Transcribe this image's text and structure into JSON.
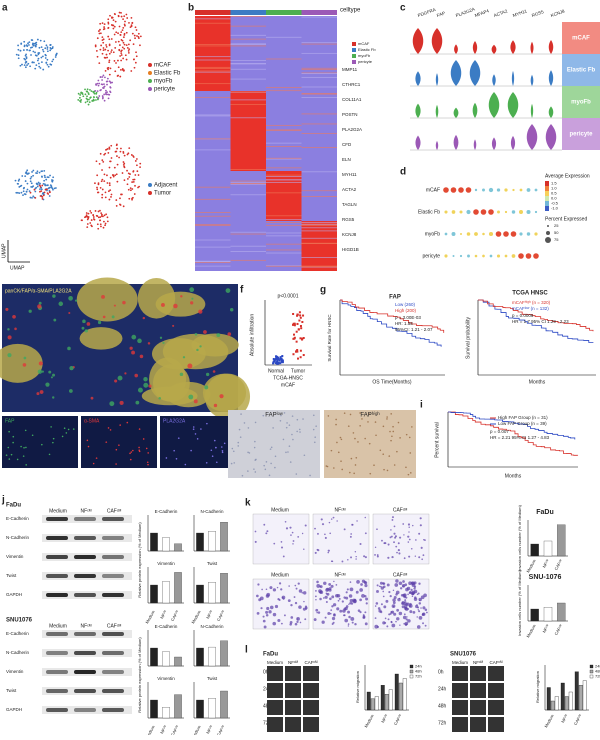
{
  "panel_labels": [
    "a",
    "b",
    "c",
    "d",
    "e",
    "f",
    "g",
    "h",
    "i",
    "j",
    "k",
    "l"
  ],
  "a": {
    "legend_top": [
      "mCAF",
      "Elastic Fb",
      "myoFb",
      "pericyte"
    ],
    "legend_bottom": [
      "Adjacent",
      "Tumor"
    ],
    "x_axis": "UMAP",
    "y_axis": "UMAP"
  },
  "b": {
    "legend_title": "celltype",
    "legend_items": [
      "mCAF",
      "Elastic Fb",
      "myoFb",
      "pericyte"
    ],
    "genes": [
      "MMP11",
      "CTHRC1",
      "COL11A1",
      "POSTN",
      "PLA2G2A",
      "CFD",
      "ELN",
      "MYH11",
      "ACTA2",
      "TAGLN",
      "RGS5",
      "KCNJ8",
      "HIGD1B"
    ]
  },
  "c": {
    "genes": [
      "PDGFRA",
      "FAP",
      "PLA2G2A",
      "MFAP4",
      "ACTA2",
      "MYH11",
      "RGS5",
      "KCNJ8"
    ],
    "rows": [
      "mCAF",
      "Elastic Fb",
      "myoFb",
      "pericyte"
    ]
  },
  "d": {
    "rows": [
      "mCAF",
      "Elastic Fb",
      "myoFb",
      "pericyte"
    ],
    "color_title": "Average Expression",
    "color_ticks": [
      "1.5",
      "1.0",
      "0.5",
      "0.0",
      "-0.5",
      "-1.0"
    ],
    "size_title": "Percent Expressed",
    "size_items": [
      "25",
      "50",
      "75"
    ]
  },
  "e": {
    "title": "panCK/FAP/α-SMA/PLA2G2A",
    "insets": [
      "FAP",
      "α-SMA",
      "PLA2G2A"
    ]
  },
  "f": {
    "p": "p<0.0001",
    "y_axis": "Absolute infiltration",
    "groups": [
      "Normal",
      "Tumor"
    ],
    "caption": [
      "TCGA-HNSC",
      "mCAF"
    ]
  },
  "g": {
    "left": {
      "title": "FAP",
      "legend": [
        "Low (260)",
        "High (200)"
      ],
      "stats": [
        "p = 3.00E-03",
        "HR: 1.58",
        "95%CI: 1.21 - 2.07"
      ],
      "x_axis": "OS Time(Months)",
      "y_axis": "Survival Rate for HNSC"
    },
    "right": {
      "title": "TCGA HNSC",
      "legend": [
        "mCAFʰⁱᵍʰ (n = 320)",
        "mCAFˡᵒʷ (n = 132)"
      ],
      "stats": [
        "p = 0.0006",
        "HR = 1.7 95% CI 1.29 - 2.23"
      ],
      "x_axis": "Months",
      "y_axis": "Survival probability"
    }
  },
  "h": {
    "labels": [
      "FAPˡᵒʷ",
      "FAPʰⁱᵍʰ"
    ]
  },
  "i": {
    "legend": [
      "High FAP Group (n = 31)",
      "Low FAP Group (n = 39)"
    ],
    "stats": [
      "p = 0.007",
      "HR = 2.21 95% CI 1.27 - 4.83"
    ],
    "x_axis": "Months",
    "y_axis": "Percent survival"
  },
  "j": {
    "cell_lines": [
      "FaDu",
      "SNU1076"
    ],
    "conditions": [
      "Medium",
      "NFᶜᴹ",
      "CAFᶜᴹ"
    ],
    "blots": [
      "E-Cadherin",
      "N-Cadherin",
      "Vimentin",
      "Twist",
      "GAPDH"
    ],
    "y_axis": "Relative protein expression (% of Medium)",
    "ylim": [
      0,
      200
    ],
    "charts": [
      {
        "title": "E-Cadherin",
        "values": [
          100,
          75,
          40
        ]
      },
      {
        "title": "N-Cadherin",
        "values": [
          100,
          110,
          160
        ]
      },
      {
        "title": "Vimentin",
        "values": [
          100,
          120,
          170
        ]
      },
      {
        "title": "Twist",
        "values": [
          100,
          115,
          165
        ]
      },
      {
        "title": "E-Cadherin",
        "values": [
          100,
          80,
          50
        ]
      },
      {
        "title": "N-Cadherin",
        "values": [
          100,
          105,
          140
        ]
      },
      {
        "title": "Vimentin",
        "values": [
          100,
          60,
          130
        ]
      },
      {
        "title": "Twist",
        "values": [
          100,
          110,
          150
        ]
      }
    ]
  },
  "k": {
    "titles": [
      "FaDu",
      "SNU-1076"
    ],
    "conditions": [
      "Medium",
      "NFᶜᴹ",
      "CAFᶜᴹ"
    ],
    "y_axis": "Invasion cells number (% of Medium)",
    "ylim": [
      0,
      300
    ],
    "values": [
      [
        100,
        125,
        260
      ],
      [
        100,
        115,
        150
      ]
    ]
  },
  "l": {
    "titles": [
      "FaDu",
      "SNU1076"
    ],
    "conditions": [
      "Medium",
      "NFᶜᴹ",
      "CAFᶜᴹ"
    ],
    "times": [
      "0h",
      "24h",
      "48h",
      "72h"
    ],
    "series": [
      "24h",
      "48h",
      "72h"
    ],
    "ylim": [
      0,
      100
    ],
    "values": [
      [
        [
          40,
          25,
          30
        ],
        [
          55,
          35,
          45
        ],
        [
          80,
          60,
          70
        ]
      ],
      [
        [
          50,
          20,
          30
        ],
        [
          60,
          30,
          40
        ],
        [
          85,
          55,
          65
        ]
      ]
    ],
    "y_axis": "Relative migration"
  }
}
